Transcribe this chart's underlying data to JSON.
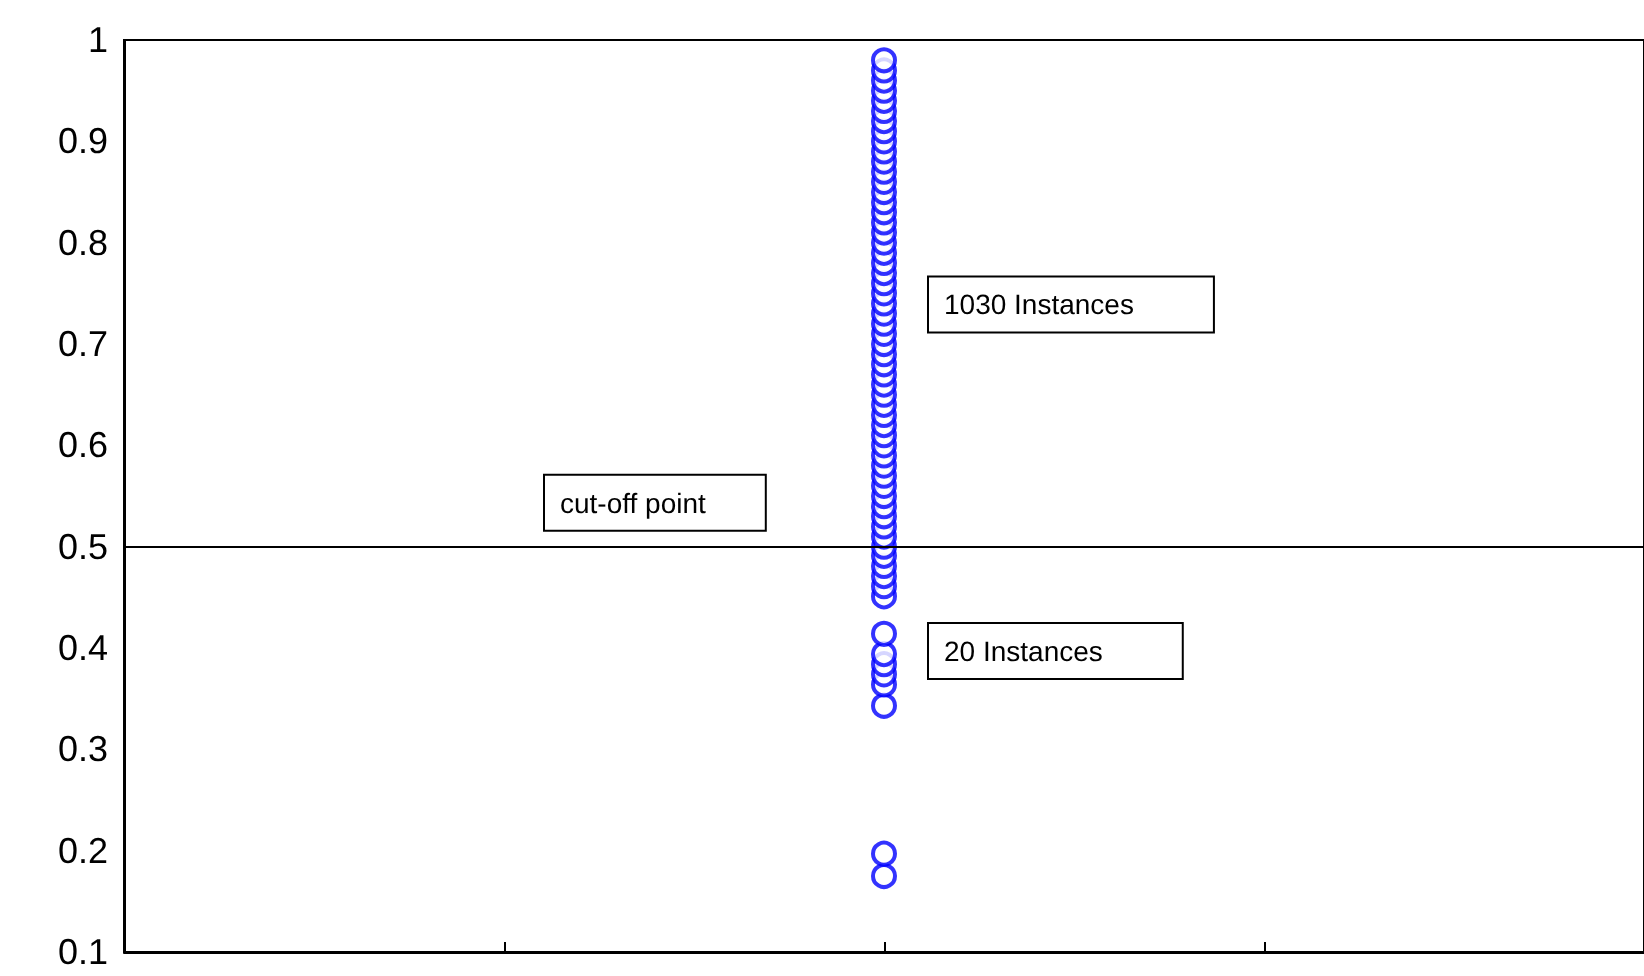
{
  "chart_data": {
    "type": "scatter",
    "marker": "circle",
    "tick_labels": "y",
    "categories": [
      null,
      null,
      null,
      null,
      null
    ],
    "ylim": [
      0.1,
      1
    ],
    "yticks": [
      0.1,
      0.2,
      0.3,
      0.4,
      0.5,
      0.6,
      0.7,
      0.8,
      0.9,
      1
    ],
    "series": [
      {
        "color": "#0000ff",
        "values": [
          null,
          null,
          0.175,
          null,
          null
        ]
      },
      {
        "color": "#0000ff",
        "values": [
          null,
          null,
          0.197,
          null,
          null
        ]
      },
      {
        "color": "#0000ff",
        "values": [
          null,
          null,
          0.343,
          null,
          null
        ]
      },
      {
        "color": "#0000ff",
        "values": [
          null,
          null,
          0.364,
          null,
          null
        ]
      },
      {
        "color": "#0000ff",
        "values": [
          null,
          null,
          0.374,
          null,
          null
        ]
      },
      {
        "color": "#0000ff",
        "values": [
          null,
          null,
          0.384,
          null,
          null
        ]
      },
      {
        "color": "#0000ff",
        "values": [
          null,
          null,
          0.394,
          null,
          null
        ]
      },
      {
        "color": "#0000ff",
        "values": [
          null,
          null,
          0.414,
          null,
          null
        ]
      },
      {
        "color": "#0000ff",
        "values": [
          null,
          null,
          0.451,
          null,
          null
        ]
      },
      {
        "color": "#0000ff",
        "values": [
          null,
          null,
          0.461,
          null,
          null
        ]
      },
      {
        "color": "#0000ff",
        "values": [
          null,
          null,
          0.471,
          null,
          null
        ]
      },
      {
        "color": "#0000ff",
        "values": [
          null,
          null,
          0.481,
          null,
          null
        ]
      },
      {
        "color": "#0000ff",
        "values": [
          null,
          null,
          0.491,
          null,
          null
        ]
      },
      {
        "color": "#0000ff",
        "values": [
          null,
          null,
          0.5,
          null,
          null
        ]
      },
      {
        "color": "#0000ff",
        "values": [
          null,
          null,
          0.51,
          null,
          null
        ]
      },
      {
        "color": "#0000ff",
        "values": [
          null,
          null,
          0.52,
          null,
          null
        ]
      },
      {
        "color": "#0000ff",
        "values": [
          null,
          null,
          0.53,
          null,
          null
        ]
      },
      {
        "color": "#0000ff",
        "values": [
          null,
          null,
          0.54,
          null,
          null
        ]
      },
      {
        "color": "#0000ff",
        "values": [
          null,
          null,
          0.55,
          null,
          null
        ]
      },
      {
        "color": "#0000ff",
        "values": [
          null,
          null,
          0.56,
          null,
          null
        ]
      },
      {
        "color": "#0000ff",
        "values": [
          null,
          null,
          0.57,
          null,
          null
        ]
      },
      {
        "color": "#0000ff",
        "values": [
          null,
          null,
          0.58,
          null,
          null
        ]
      },
      {
        "color": "#0000ff",
        "values": [
          null,
          null,
          0.59,
          null,
          null
        ]
      },
      {
        "color": "#0000ff",
        "values": [
          null,
          null,
          0.6,
          null,
          null
        ]
      },
      {
        "color": "#0000ff",
        "values": [
          null,
          null,
          0.61,
          null,
          null
        ]
      },
      {
        "color": "#0000ff",
        "values": [
          null,
          null,
          0.62,
          null,
          null
        ]
      },
      {
        "color": "#0000ff",
        "values": [
          null,
          null,
          0.63,
          null,
          null
        ]
      },
      {
        "color": "#0000ff",
        "values": [
          null,
          null,
          0.64,
          null,
          null
        ]
      },
      {
        "color": "#0000ff",
        "values": [
          null,
          null,
          0.65,
          null,
          null
        ]
      },
      {
        "color": "#0000ff",
        "values": [
          null,
          null,
          0.66,
          null,
          null
        ]
      },
      {
        "color": "#0000ff",
        "values": [
          null,
          null,
          0.67,
          null,
          null
        ]
      },
      {
        "color": "#0000ff",
        "values": [
          null,
          null,
          0.68,
          null,
          null
        ]
      },
      {
        "color": "#0000ff",
        "values": [
          null,
          null,
          0.69,
          null,
          null
        ]
      },
      {
        "color": "#0000ff",
        "values": [
          null,
          null,
          0.7,
          null,
          null
        ]
      },
      {
        "color": "#0000ff",
        "values": [
          null,
          null,
          0.71,
          null,
          null
        ]
      },
      {
        "color": "#0000ff",
        "values": [
          null,
          null,
          0.72,
          null,
          null
        ]
      },
      {
        "color": "#0000ff",
        "values": [
          null,
          null,
          0.73,
          null,
          null
        ]
      },
      {
        "color": "#0000ff",
        "values": [
          null,
          null,
          0.74,
          null,
          null
        ]
      },
      {
        "color": "#0000ff",
        "values": [
          null,
          null,
          0.75,
          null,
          null
        ]
      },
      {
        "color": "#0000ff",
        "values": [
          null,
          null,
          0.76,
          null,
          null
        ]
      },
      {
        "color": "#0000ff",
        "values": [
          null,
          null,
          0.77,
          null,
          null
        ]
      },
      {
        "color": "#0000ff",
        "values": [
          null,
          null,
          0.78,
          null,
          null
        ]
      },
      {
        "color": "#0000ff",
        "values": [
          null,
          null,
          0.79,
          null,
          null
        ]
      },
      {
        "color": "#0000ff",
        "values": [
          null,
          null,
          0.8,
          null,
          null
        ]
      },
      {
        "color": "#0000ff",
        "values": [
          null,
          null,
          0.81,
          null,
          null
        ]
      },
      {
        "color": "#0000ff",
        "values": [
          null,
          null,
          0.82,
          null,
          null
        ]
      },
      {
        "color": "#0000ff",
        "values": [
          null,
          null,
          0.83,
          null,
          null
        ]
      },
      {
        "color": "#0000ff",
        "values": [
          null,
          null,
          0.84,
          null,
          null
        ]
      },
      {
        "color": "#0000ff",
        "values": [
          null,
          null,
          0.85,
          null,
          null
        ]
      },
      {
        "color": "#0000ff",
        "values": [
          null,
          null,
          0.86,
          null,
          null
        ]
      },
      {
        "color": "#0000ff",
        "values": [
          null,
          null,
          0.87,
          null,
          null
        ]
      },
      {
        "color": "#0000ff",
        "values": [
          null,
          null,
          0.88,
          null,
          null
        ]
      },
      {
        "color": "#0000ff",
        "values": [
          null,
          null,
          0.89,
          null,
          null
        ]
      },
      {
        "color": "#0000ff",
        "values": [
          null,
          null,
          0.9,
          null,
          null
        ]
      },
      {
        "color": "#0000ff",
        "values": [
          null,
          null,
          0.91,
          null,
          null
        ]
      },
      {
        "color": "#0000ff",
        "values": [
          null,
          null,
          0.92,
          null,
          null
        ]
      },
      {
        "color": "#0000ff",
        "values": [
          null,
          null,
          0.93,
          null,
          null
        ]
      },
      {
        "color": "#0000ff",
        "values": [
          null,
          null,
          0.94,
          null,
          null
        ]
      },
      {
        "color": "#0000ff",
        "values": [
          null,
          null,
          0.95,
          null,
          null
        ]
      },
      {
        "color": "#0000ff",
        "values": [
          null,
          null,
          0.96,
          null,
          null
        ]
      },
      {
        "color": "#0000ff",
        "values": [
          null,
          null,
          0.97,
          null,
          null
        ]
      },
      {
        "color": "#0000ff",
        "values": [
          null,
          null,
          0.98,
          null,
          null
        ]
      }
    ],
    "ref_lines": [
      {
        "axis": "y",
        "value": 0.5,
        "color": "#000000",
        "label": "cut-off point"
      }
    ],
    "annotations": [
      "1030 Instances",
      "20 Instances"
    ]
  }
}
